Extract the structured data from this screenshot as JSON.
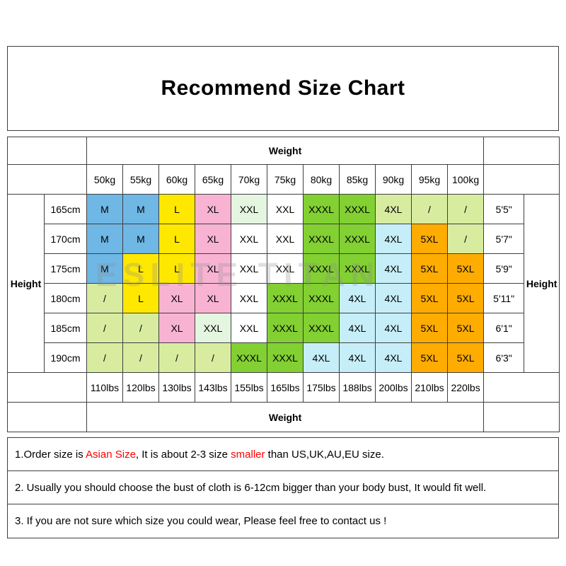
{
  "title": "Recommend Size Chart",
  "watermark": "ESLITE TITAN",
  "palette": {
    "blue": "#6FB7E5",
    "yellow": "#FFE800",
    "pink": "#F8B3D3",
    "mint": "#E4F5E0",
    "white": "#FFFFFF",
    "green": "#82D032",
    "palegreen": "#D8ECA0",
    "cyan": "#C6EEF8",
    "orange": "#FFAC00"
  },
  "chart_data": {
    "type": "table",
    "title": "Recommend Size Chart",
    "weight_header": "Weight",
    "height_header": "Height",
    "weights_kg": [
      "50kg",
      "55kg",
      "60kg",
      "65kg",
      "70kg",
      "75kg",
      "80kg",
      "85kg",
      "90kg",
      "95kg",
      "100kg"
    ],
    "weights_lbs": [
      "110lbs",
      "120lbs",
      "130lbs",
      "143lbs",
      "155lbs",
      "165lbs",
      "175lbs",
      "188lbs",
      "200lbs",
      "210lbs",
      "220lbs"
    ],
    "rows": [
      {
        "height_cm": "165cm",
        "height_ft": "5'5\"",
        "cells": [
          {
            "label": "M",
            "color": "blue"
          },
          {
            "label": "M",
            "color": "blue"
          },
          {
            "label": "L",
            "color": "yellow"
          },
          {
            "label": "XL",
            "color": "pink"
          },
          {
            "label": "XXL",
            "color": "mint"
          },
          {
            "label": "XXL",
            "color": "white"
          },
          {
            "label": "XXXL",
            "color": "green"
          },
          {
            "label": "XXXL",
            "color": "green"
          },
          {
            "label": "4XL",
            "color": "palegreen"
          },
          {
            "label": "/",
            "color": "palegreen"
          },
          {
            "label": "/",
            "color": "palegreen"
          }
        ]
      },
      {
        "height_cm": "170cm",
        "height_ft": "5'7\"",
        "cells": [
          {
            "label": "M",
            "color": "blue"
          },
          {
            "label": "M",
            "color": "blue"
          },
          {
            "label": "L",
            "color": "yellow"
          },
          {
            "label": "XL",
            "color": "pink"
          },
          {
            "label": "XXL",
            "color": "white"
          },
          {
            "label": "XXL",
            "color": "white"
          },
          {
            "label": "XXXL",
            "color": "green"
          },
          {
            "label": "XXXL",
            "color": "green"
          },
          {
            "label": "4XL",
            "color": "cyan"
          },
          {
            "label": "5XL",
            "color": "orange"
          },
          {
            "label": "/",
            "color": "palegreen"
          }
        ]
      },
      {
        "height_cm": "175cm",
        "height_ft": "5'9\"",
        "cells": [
          {
            "label": "M",
            "color": "blue"
          },
          {
            "label": "L",
            "color": "yellow"
          },
          {
            "label": "L",
            "color": "yellow"
          },
          {
            "label": "XL",
            "color": "pink"
          },
          {
            "label": "XXL",
            "color": "white"
          },
          {
            "label": "XXL",
            "color": "white"
          },
          {
            "label": "XXXL",
            "color": "green"
          },
          {
            "label": "XXXL",
            "color": "green"
          },
          {
            "label": "4XL",
            "color": "cyan"
          },
          {
            "label": "5XL",
            "color": "orange"
          },
          {
            "label": "5XL",
            "color": "orange"
          }
        ]
      },
      {
        "height_cm": "180cm",
        "height_ft": "5'11\"",
        "cells": [
          {
            "label": "/",
            "color": "palegreen"
          },
          {
            "label": "L",
            "color": "yellow"
          },
          {
            "label": "XL",
            "color": "pink"
          },
          {
            "label": "XL",
            "color": "pink"
          },
          {
            "label": "XXL",
            "color": "white"
          },
          {
            "label": "XXXL",
            "color": "green"
          },
          {
            "label": "XXXL",
            "color": "green"
          },
          {
            "label": "4XL",
            "color": "cyan"
          },
          {
            "label": "4XL",
            "color": "cyan"
          },
          {
            "label": "5XL",
            "color": "orange"
          },
          {
            "label": "5XL",
            "color": "orange"
          }
        ]
      },
      {
        "height_cm": "185cm",
        "height_ft": "6'1\"",
        "cells": [
          {
            "label": "/",
            "color": "palegreen"
          },
          {
            "label": "/",
            "color": "palegreen"
          },
          {
            "label": "XL",
            "color": "pink"
          },
          {
            "label": "XXL",
            "color": "mint"
          },
          {
            "label": "XXL",
            "color": "white"
          },
          {
            "label": "XXXL",
            "color": "green"
          },
          {
            "label": "XXXL",
            "color": "green"
          },
          {
            "label": "4XL",
            "color": "cyan"
          },
          {
            "label": "4XL",
            "color": "cyan"
          },
          {
            "label": "5XL",
            "color": "orange"
          },
          {
            "label": "5XL",
            "color": "orange"
          }
        ]
      },
      {
        "height_cm": "190cm",
        "height_ft": "6'3\"",
        "cells": [
          {
            "label": "/",
            "color": "palegreen"
          },
          {
            "label": "/",
            "color": "palegreen"
          },
          {
            "label": "/",
            "color": "palegreen"
          },
          {
            "label": "/",
            "color": "palegreen"
          },
          {
            "label": "XXXL",
            "color": "green"
          },
          {
            "label": "XXXL",
            "color": "green"
          },
          {
            "label": "4XL",
            "color": "cyan"
          },
          {
            "label": "4XL",
            "color": "cyan"
          },
          {
            "label": "4XL",
            "color": "cyan"
          },
          {
            "label": "5XL",
            "color": "orange"
          },
          {
            "label": "5XL",
            "color": "orange"
          }
        ]
      }
    ]
  },
  "notes": [
    {
      "parts": [
        {
          "text": "1.Order size is ",
          "red": false
        },
        {
          "text": "Asian Size",
          "red": true
        },
        {
          "text": ", It is about 2-3 size ",
          "red": false
        },
        {
          "text": "smaller",
          "red": true
        },
        {
          "text": " than US,UK,AU,EU size.",
          "red": false
        }
      ]
    },
    {
      "parts": [
        {
          "text": "2. Usually you should choose the bust of cloth is 6-12cm bigger than your body bust, It would fit well.",
          "red": false
        }
      ]
    },
    {
      "parts": [
        {
          "text": "3. If you are not sure which size you could wear, Please feel free to contact us !",
          "red": false
        }
      ]
    }
  ]
}
